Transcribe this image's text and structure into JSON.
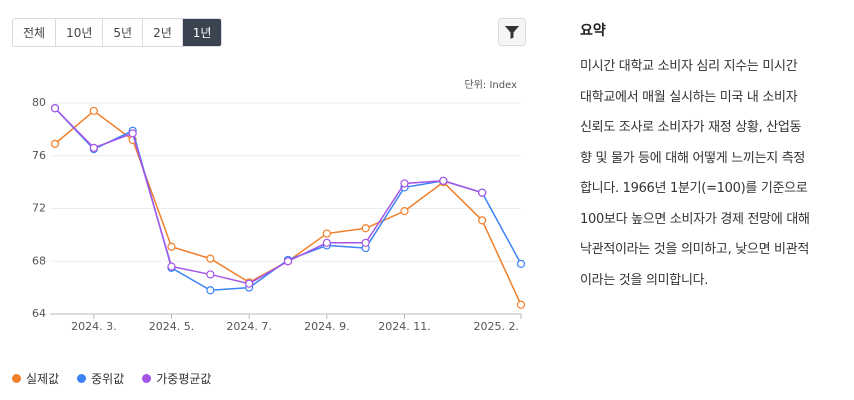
{
  "range_buttons": [
    "전체",
    "10년",
    "5년",
    "2년",
    "1년"
  ],
  "active_range": 4,
  "summary": {
    "title": "요약",
    "lines": [
      "미시간 대학교 소비자 심리 지수는 미시간",
      "대학교에서 매월 실시하는 미국 내 소비자",
      "신뢰도 조사로 소비자가 재정 상황, 산업동",
      "향 및 물가 등에 대해 어떻게 느끼는지 측정",
      "합니다. 1966년 1분기(=100)를 기준으로",
      "100보다 높으면 소비자가 경제 전망에 대해",
      "낙관적이라는 것을 의미하고, 낮으면 비관적",
      "이라는 것을 의미합니다."
    ]
  },
  "chart_data": {
    "type": "line",
    "unit_label": "단위: Index",
    "categories": [
      null,
      "2024. 3.",
      null,
      "2024. 5.",
      null,
      "2024. 7.",
      null,
      "2024. 9.",
      null,
      "2024. 11.",
      null,
      null,
      "2025. 2."
    ],
    "ylim": [
      64,
      80
    ],
    "yticks": [
      64,
      68,
      72,
      76,
      80
    ],
    "grid": true,
    "series": [
      {
        "name": "실제값",
        "color": "#f07f2a",
        "values": [
          76.9,
          79.4,
          77.2,
          69.1,
          68.2,
          66.4,
          68.0,
          70.1,
          70.5,
          71.8,
          74.0,
          71.1,
          64.7
        ]
      },
      {
        "name": "중위값",
        "color": "#3b82f6",
        "values": [
          79.6,
          76.5,
          77.9,
          67.5,
          65.8,
          66.0,
          68.1,
          69.2,
          69.0,
          73.6,
          74.1,
          73.2,
          67.8
        ]
      },
      {
        "name": "가중평균값",
        "color": "#a455e8",
        "values": [
          79.6,
          76.6,
          77.7,
          67.6,
          67.0,
          66.3,
          68.0,
          69.4,
          69.4,
          73.9,
          74.1,
          73.2,
          null
        ]
      }
    ]
  }
}
